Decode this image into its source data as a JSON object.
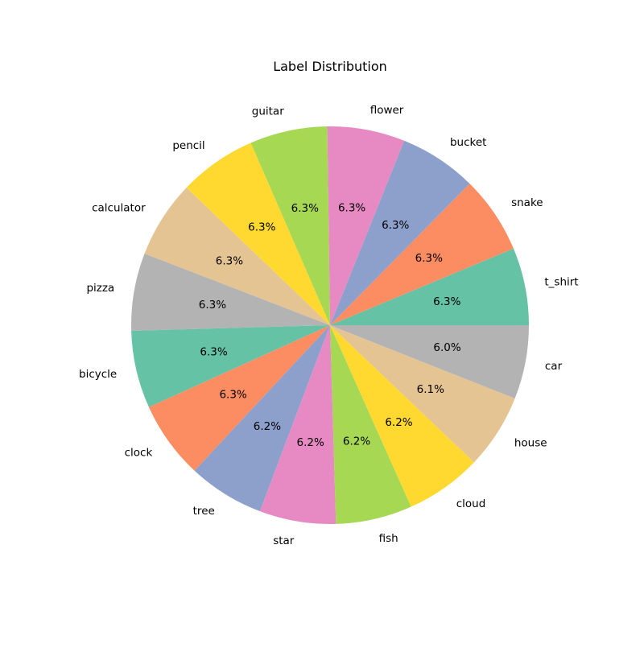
{
  "chart_data": {
    "type": "pie",
    "title": "Label Distribution",
    "start_angle_deg": 0,
    "direction": "counterclockwise",
    "slices": [
      {
        "label": "t_shirt",
        "value": 6.3,
        "pct_label": "6.3%",
        "color": "#66c2a5"
      },
      {
        "label": "snake",
        "value": 6.3,
        "pct_label": "6.3%",
        "color": "#fc8d62"
      },
      {
        "label": "bucket",
        "value": 6.3,
        "pct_label": "6.3%",
        "color": "#8da0cb"
      },
      {
        "label": "flower",
        "value": 6.3,
        "pct_label": "6.3%",
        "color": "#e78ac3"
      },
      {
        "label": "guitar",
        "value": 6.3,
        "pct_label": "6.3%",
        "color": "#a6d854"
      },
      {
        "label": "pencil",
        "value": 6.3,
        "pct_label": "6.3%",
        "color": "#ffd92f"
      },
      {
        "label": "calculator",
        "value": 6.3,
        "pct_label": "6.3%",
        "color": "#e5c494"
      },
      {
        "label": "pizza",
        "value": 6.3,
        "pct_label": "6.3%",
        "color": "#b3b3b3"
      },
      {
        "label": "bicycle",
        "value": 6.3,
        "pct_label": "6.3%",
        "color": "#66c2a5"
      },
      {
        "label": "clock",
        "value": 6.3,
        "pct_label": "6.3%",
        "color": "#fc8d62"
      },
      {
        "label": "tree",
        "value": 6.2,
        "pct_label": "6.2%",
        "color": "#8da0cb"
      },
      {
        "label": "star",
        "value": 6.2,
        "pct_label": "6.2%",
        "color": "#e78ac3"
      },
      {
        "label": "fish",
        "value": 6.2,
        "pct_label": "6.2%",
        "color": "#a6d854"
      },
      {
        "label": "cloud",
        "value": 6.2,
        "pct_label": "6.2%",
        "color": "#ffd92f"
      },
      {
        "label": "house",
        "value": 6.1,
        "pct_label": "6.1%",
        "color": "#e5c494"
      },
      {
        "label": "car",
        "value": 6.0,
        "pct_label": "6.0%",
        "color": "#b3b3b3"
      }
    ]
  }
}
